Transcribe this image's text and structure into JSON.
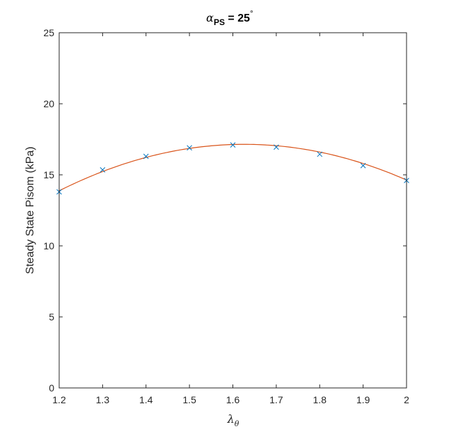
{
  "chart_data": {
    "type": "scatter",
    "title": {
      "symbol": "α",
      "subscript": "PS",
      "text": " = 25",
      "superscript": "°"
    },
    "xlabel": {
      "symbol": "λ",
      "subscript": "θ"
    },
    "ylabel": "Steady State Pisom (kPa)",
    "xlim": [
      1.2,
      2.0
    ],
    "ylim": [
      0,
      25
    ],
    "xticks": [
      "1.2",
      "1.3",
      "1.4",
      "1.5",
      "1.6",
      "1.7",
      "1.8",
      "1.9",
      "2"
    ],
    "yticks": [
      "0",
      "5",
      "10",
      "15",
      "20",
      "25"
    ],
    "grid": false,
    "series": [
      {
        "kind": "markers",
        "marker": "x",
        "color": "#0072BD",
        "x": [
          1.2,
          1.3,
          1.4,
          1.5,
          1.6,
          1.7,
          1.8,
          1.9,
          2.0
        ],
        "y": [
          13.8,
          15.35,
          16.3,
          16.9,
          17.1,
          16.95,
          16.45,
          15.65,
          14.6
        ]
      },
      {
        "kind": "fit-curve",
        "color": "#D95319",
        "x": [
          1.2,
          1.3,
          1.4,
          1.5,
          1.6,
          1.7,
          1.8,
          1.9,
          2.0
        ],
        "y": [
          13.88,
          15.22,
          16.23,
          16.86,
          17.13,
          17.05,
          16.6,
          15.8,
          14.63
        ]
      }
    ]
  }
}
